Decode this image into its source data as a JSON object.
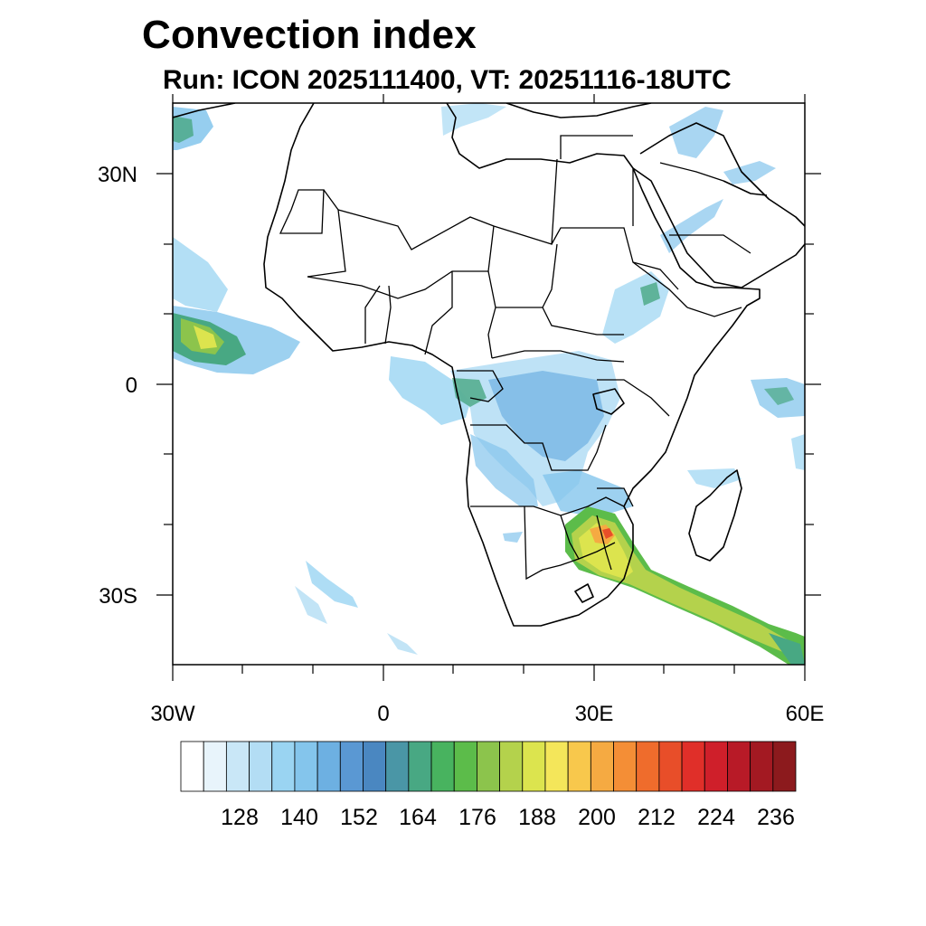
{
  "header": {
    "title": "Convection index",
    "subtitle": "Run: ICON 2025111400,  VT: 20251116-18UTC"
  },
  "map": {
    "x_axis_labels": [
      "30W",
      "0",
      "30E",
      "60E"
    ],
    "y_axis_labels": [
      "30N",
      "0",
      "30S"
    ],
    "lon_range": [
      -30,
      60
    ],
    "lat_range": [
      -40,
      40
    ]
  },
  "colorbar": {
    "labels": [
      "128",
      "140",
      "152",
      "164",
      "176",
      "188",
      "200",
      "212",
      "224",
      "236"
    ],
    "colors": [
      "#ffffff",
      "#e8f4fb",
      "#c9e7f7",
      "#b3ddf4",
      "#9ad4f2",
      "#84c5ec",
      "#6db0e2",
      "#5a98d3",
      "#4a87c1",
      "#4a96a6",
      "#48a883",
      "#48b35f",
      "#5cbc4a",
      "#8cc44c",
      "#b4d24c",
      "#dce44e",
      "#f4e65a",
      "#f8c84c",
      "#f5aa42",
      "#f48e36",
      "#ef6c2c",
      "#e84e29",
      "#e02f29",
      "#cf1f2a",
      "#b81a27",
      "#a31922",
      "#8c1a1d"
    ]
  }
}
